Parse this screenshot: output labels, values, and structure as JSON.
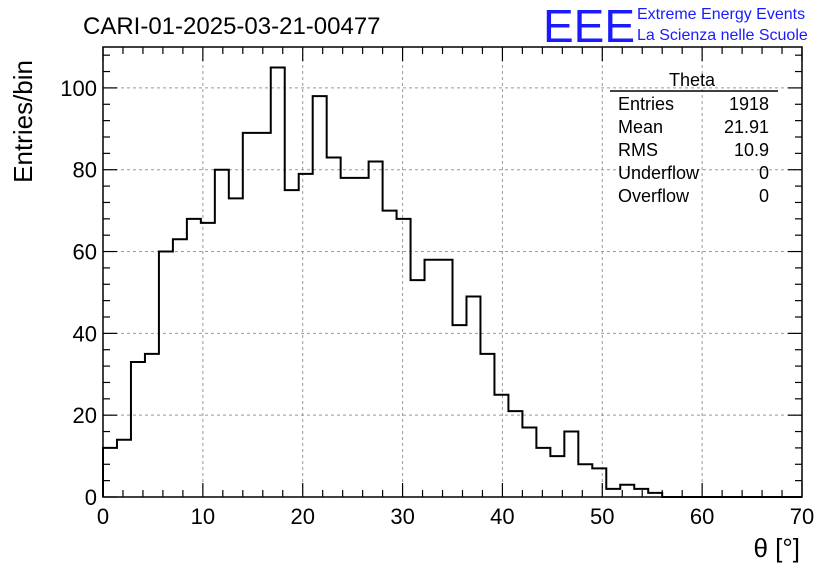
{
  "logo": {
    "mark": "EEE",
    "line1": "Extreme Energy Events",
    "line2": "La Scienza nelle Scuole",
    "color": "#1a1aff"
  },
  "chart_data": {
    "type": "bar",
    "histogram": true,
    "title": "CARI-01-2025-03-21-00477",
    "xlabel": "θ [°]",
    "ylabel": "Entries/bin",
    "xlim": [
      0,
      70
    ],
    "ylim": [
      0,
      110
    ],
    "grid": true,
    "bin_width": 1.4,
    "bin_edges_start": 0,
    "values": [
      12,
      14,
      33,
      35,
      60,
      63,
      68,
      67,
      80,
      73,
      89,
      89,
      105,
      75,
      79,
      98,
      83,
      78,
      78,
      82,
      70,
      68,
      53,
      58,
      58,
      42,
      49,
      35,
      25,
      21,
      17,
      12,
      10,
      16,
      8,
      7,
      2,
      3,
      2,
      1,
      0,
      0,
      0,
      0,
      0,
      0,
      0,
      0,
      0,
      0
    ],
    "x_ticks": [
      "0",
      "10",
      "20",
      "30",
      "40",
      "50",
      "60",
      "70"
    ],
    "y_ticks": [
      "0",
      "20",
      "40",
      "60",
      "80",
      "100"
    ],
    "stats": {
      "name": "Theta",
      "rows": [
        {
          "label": "Entries",
          "value": "1918"
        },
        {
          "label": "Mean",
          "value": "21.91"
        },
        {
          "label": "RMS",
          "value": "10.9"
        },
        {
          "label": "Underflow",
          "value": "0"
        },
        {
          "label": "Overflow",
          "value": "0"
        }
      ],
      "placement": "top-right"
    }
  }
}
